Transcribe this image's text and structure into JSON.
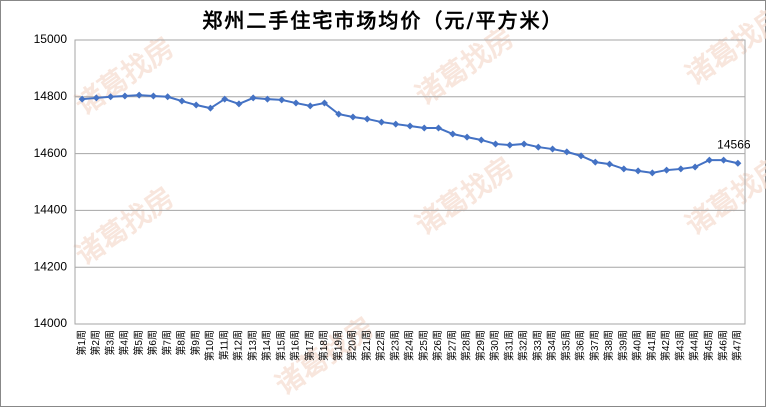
{
  "chart_data": {
    "type": "line",
    "title": "郑州二手住宅市场均价（元/平方米）",
    "watermark": "诸葛找房",
    "categories": [
      "第1周",
      "第2周",
      "第3周",
      "第4周",
      "第5周",
      "第6周",
      "第7周",
      "第8周",
      "第9周",
      "第10周",
      "第11周",
      "第12周",
      "第13周",
      "第14周",
      "第15周",
      "第16周",
      "第17周",
      "第18周",
      "第19周",
      "第20周",
      "第21周",
      "第22周",
      "第23周",
      "第24周",
      "第25周",
      "第26周",
      "第27周",
      "第28周",
      "第29周",
      "第30周",
      "第31周",
      "第32周",
      "第33周",
      "第34周",
      "第35周",
      "第36周",
      "第37周",
      "第38周",
      "第39周",
      "第40周",
      "第41周",
      "第42周",
      "第43周",
      "第44周",
      "第45周",
      "第46周",
      "第47周"
    ],
    "values": [
      14792,
      14796,
      14800,
      14803,
      14806,
      14803,
      14800,
      14785,
      14771,
      14760,
      14792,
      14775,
      14796,
      14792,
      14789,
      14778,
      14768,
      14778,
      14739,
      14729,
      14722,
      14711,
      14704,
      14697,
      14690,
      14690,
      14669,
      14658,
      14648,
      14634,
      14630,
      14634,
      14623,
      14616,
      14606,
      14592,
      14570,
      14563,
      14546,
      14539,
      14532,
      14542,
      14546,
      14553,
      14577,
      14577,
      14566
    ],
    "color": "#4472c4",
    "ylim": [
      14000,
      15000
    ],
    "yticks": [
      14000,
      14200,
      14400,
      14600,
      14800,
      15000
    ],
    "grid": true
  }
}
